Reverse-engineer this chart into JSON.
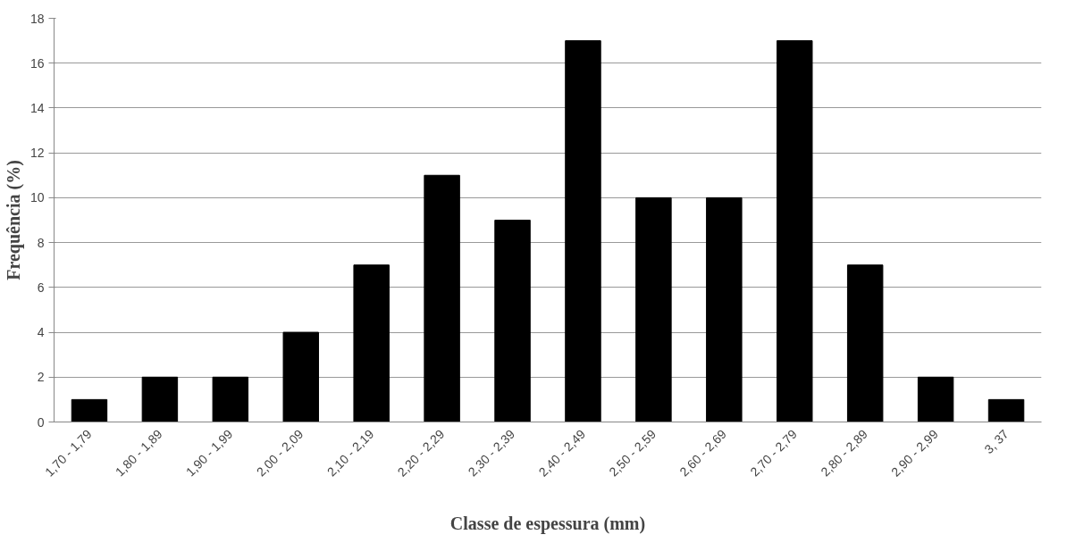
{
  "chart_data": {
    "type": "bar",
    "xlabel": "Classe de espessura (mm)",
    "ylabel": "Frequência (%)",
    "categories": [
      "1,70 - 1,79",
      "1,80 - 1,89",
      "1,90 - 1,99",
      "2,00 - 2,09",
      "2,10 - 2,19",
      "2,20 - 2,29",
      "2,30 - 2,39",
      "2,40 - 2,49",
      "2,50 - 2,59",
      "2,60 - 2,69",
      "2,70 - 2,79",
      "2,80 - 2,89",
      "2,90 - 2,99",
      "3, 37"
    ],
    "values": [
      1,
      2,
      2,
      4,
      7,
      11,
      9,
      17,
      10,
      10,
      17,
      7,
      2,
      1
    ],
    "color": "#000000",
    "ylim": [
      0,
      18
    ],
    "yticks": [
      0,
      2,
      4,
      6,
      8,
      10,
      12,
      14,
      16,
      18
    ],
    "grid": "y"
  }
}
